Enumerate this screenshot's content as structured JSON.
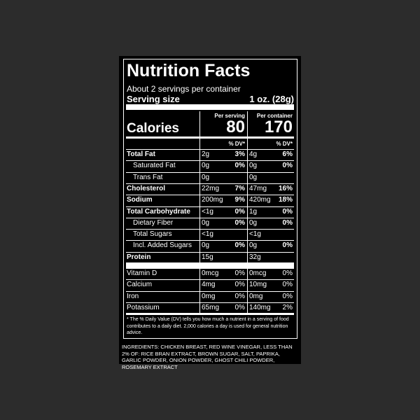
{
  "title": "Nutrition Facts",
  "servings": "About 2 servings per container",
  "serving_size": {
    "label": "Serving size",
    "value": "1 oz. (28g)"
  },
  "calories": {
    "label": "Calories",
    "per_serving_header": "Per serving",
    "per_container_header": "Per container",
    "per_serving": "80",
    "per_container": "170"
  },
  "dv_header": {
    "serving": "% DV*",
    "container": "% DV*"
  },
  "nutrients": [
    {
      "name": "Total Fat",
      "bold": true,
      "indent": false,
      "serving_amount": "2g",
      "serving_dv": "3%",
      "container_amount": "4g",
      "container_dv": "6%"
    },
    {
      "name": "Saturated Fat",
      "bold": false,
      "indent": true,
      "serving_amount": "0g",
      "serving_dv": "0%",
      "container_amount": "0g",
      "container_dv": "0%"
    },
    {
      "name": "Trans Fat",
      "bold": false,
      "indent": true,
      "serving_amount": "0g",
      "container_amount": "0g"
    },
    {
      "name": "Cholesterol",
      "bold": true,
      "indent": false,
      "serving_amount": "22mg",
      "serving_dv": "7%",
      "container_amount": "47mg",
      "container_dv": "16%"
    },
    {
      "name": "Sodium",
      "bold": true,
      "indent": false,
      "serving_amount": "200mg",
      "serving_dv": "9%",
      "container_amount": "420mg",
      "container_dv": "18%"
    },
    {
      "name": "Total Carbohydrate",
      "bold": true,
      "indent": false,
      "serving_amount": "<1g",
      "serving_dv": "0%",
      "container_amount": "1g",
      "container_dv": "0%"
    },
    {
      "name": "Dietary Fiber",
      "bold": false,
      "indent": true,
      "serving_amount": "0g",
      "serving_dv": "0%",
      "container_amount": "0g",
      "container_dv": "0%"
    },
    {
      "name": "Total Sugars",
      "bold": false,
      "indent": true,
      "serving_amount": "<1g",
      "container_amount": "<1g"
    },
    {
      "name": "Incl. Added Sugars",
      "bold": false,
      "indent": true,
      "serving_amount": "0g",
      "serving_dv": "0%",
      "container_amount": "0g",
      "container_dv": "0%"
    },
    {
      "name": "Protein",
      "bold": true,
      "indent": false,
      "serving_amount": "15g",
      "container_amount": "32g"
    }
  ],
  "vitamins": [
    {
      "name": "Vitamin D",
      "serving_amount": "0mcg",
      "serving_dv": "0%",
      "container_amount": "0mcg",
      "container_dv": "0%"
    },
    {
      "name": "Calcium",
      "serving_amount": "4mg",
      "serving_dv": "0%",
      "container_amount": "10mg",
      "container_dv": "0%"
    },
    {
      "name": "Iron",
      "serving_amount": "0mg",
      "serving_dv": "0%",
      "container_amount": "0mg",
      "container_dv": "0%"
    },
    {
      "name": "Potassium",
      "serving_amount": "65mg",
      "serving_dv": "0%",
      "container_amount": "140mg",
      "container_dv": "2%"
    }
  ],
  "footnote": "* The % Daily Value (DV) tells you how much a nutrient in a serving of food contributes to a daily diet. 2,000 calories a day is used for general nutrition advice.",
  "ingredients": "INGREDIENTS: CHICKEN BREAST, RED WINE VINEGAR, LESS THAN 2% OF: RICE BRAN EXTRACT, BROWN SUGAR, SALT, PAPRIKA, GARLIC POWDER, ONION POWDER, GHOST CHILI POWDER, ROSEMARY EXTRACT"
}
